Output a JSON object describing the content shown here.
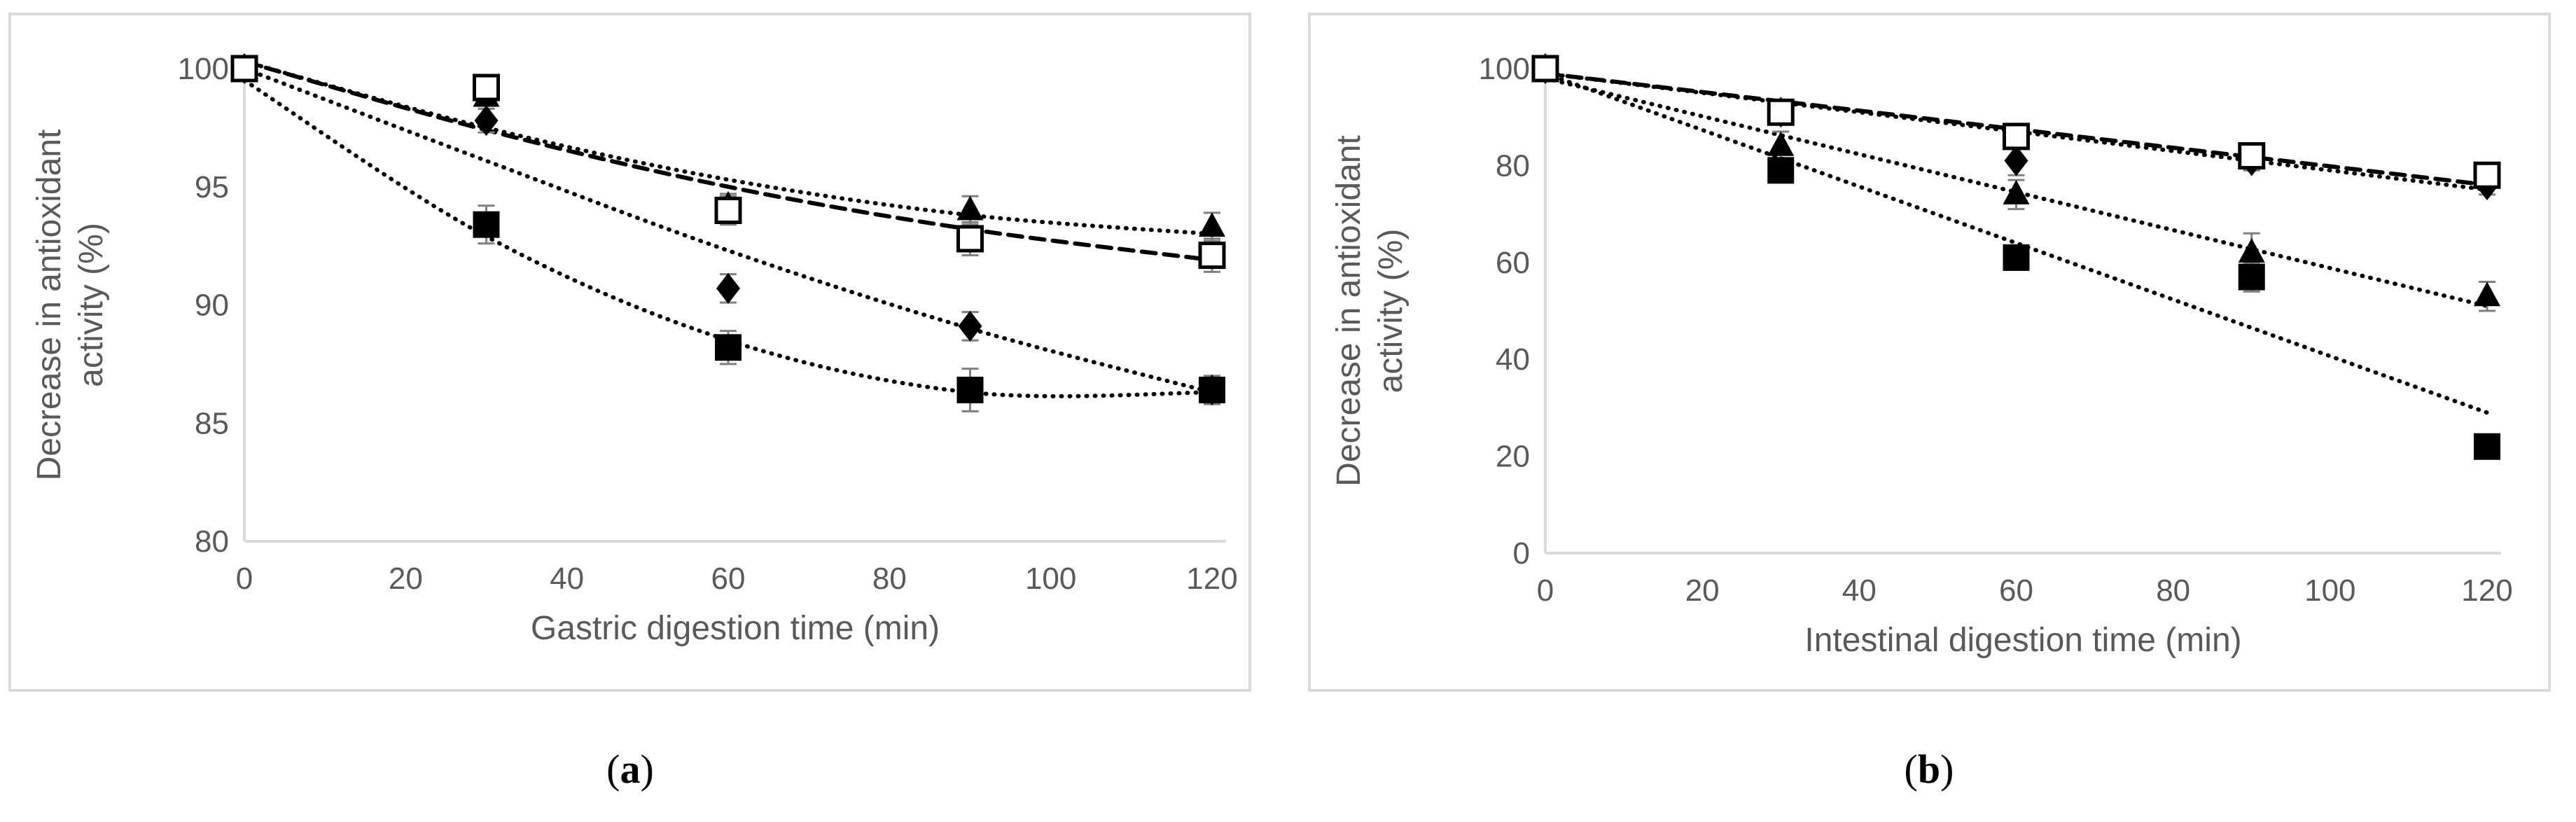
{
  "chart_data": [
    {
      "type": "scatter",
      "panel": "a",
      "xlabel": "Gastric digestion time (min)",
      "ylabel": "Decrease in antioxidant activity (%)",
      "xlim": [
        0,
        120
      ],
      "ylim": [
        80,
        100
      ],
      "xticks": [
        0,
        20,
        40,
        60,
        80,
        100,
        120
      ],
      "yticks": [
        80,
        85,
        90,
        95,
        100
      ],
      "grid": false,
      "series": [
        {
          "marker": "diamond",
          "x": [
            0,
            30,
            60,
            90,
            120
          ],
          "y": [
            100,
            97.8,
            90.7,
            89.1,
            86.4
          ],
          "err": [
            0.3,
            0.5,
            0.6,
            0.6,
            0.5
          ],
          "trend": {
            "style": "dotted",
            "x": [
              0,
              30,
              60,
              90,
              120
            ],
            "y": [
              100,
              96.1,
              92.3,
              89.0,
              86.3
            ]
          }
        },
        {
          "marker": "square-filled",
          "x": [
            0,
            30,
            60,
            90,
            120
          ],
          "y": [
            100,
            93.4,
            88.2,
            86.4,
            86.4
          ],
          "err": [
            0.3,
            0.8,
            0.7,
            0.9,
            0.6
          ],
          "trend": {
            "style": "dotted",
            "x": [
              0,
              30,
              60,
              90,
              120
            ],
            "y": [
              99.5,
              92.9,
              88.5,
              86.3,
              86.3
            ]
          }
        },
        {
          "marker": "triangle",
          "x": [
            0,
            30,
            60,
            90,
            120
          ],
          "y": [
            100,
            98.8,
            94.2,
            94.0,
            93.3
          ],
          "err": [
            0.3,
            0.5,
            0.5,
            0.6,
            0.6
          ],
          "trend": {
            "style": "dotted",
            "x": [
              0,
              30,
              60,
              90,
              120
            ],
            "y": [
              100.3,
              97.5,
              95.3,
              93.8,
              93.0
            ]
          }
        },
        {
          "marker": "square-open",
          "x": [
            0,
            30,
            60,
            90,
            120
          ],
          "y": [
            100,
            99.2,
            94.0,
            92.8,
            92.1
          ],
          "err": [
            0.3,
            0.5,
            0.6,
            0.7,
            0.7
          ],
          "trend": {
            "style": "dashed",
            "x": [
              0,
              30,
              60,
              90,
              120
            ],
            "y": [
              100.3,
              97.4,
              95.0,
              93.2,
              91.9
            ]
          }
        }
      ]
    },
    {
      "type": "scatter",
      "panel": "b",
      "xlabel": "Intestinal digestion time (min)",
      "ylabel": "Decrease in antioxidant activity (%)",
      "xlim": [
        0,
        120
      ],
      "ylim": [
        0,
        100
      ],
      "xticks": [
        0,
        20,
        40,
        60,
        80,
        100,
        120
      ],
      "yticks": [
        0,
        20,
        40,
        60,
        80,
        100
      ],
      "grid": false,
      "series": [
        {
          "marker": "diamond",
          "x": [
            0,
            30,
            60,
            90,
            120
          ],
          "y": [
            100,
            91,
            81,
            81,
            76
          ],
          "err": [
            1.5,
            2,
            3,
            2,
            2
          ],
          "trend": {
            "style": "dotted",
            "x": [
              0,
              120
            ],
            "y": [
              99,
              75
            ]
          }
        },
        {
          "marker": "triangle",
          "x": [
            0,
            30,
            60,
            90,
            120
          ],
          "y": [
            100,
            84,
            74,
            62,
            53
          ],
          "err": [
            1.5,
            3,
            3,
            4,
            3
          ],
          "trend": {
            "style": "dotted",
            "x": [
              0,
              120
            ],
            "y": [
              98,
              51
            ]
          }
        },
        {
          "marker": "square-filled",
          "x": [
            0,
            30,
            60,
            90,
            120
          ],
          "y": [
            100,
            79,
            61,
            57,
            22
          ],
          "err": [
            1.5,
            2,
            2,
            3,
            2
          ],
          "trend": {
            "style": "dotted",
            "x": [
              0,
              120
            ],
            "y": [
              99,
              29
            ]
          }
        },
        {
          "marker": "square-open",
          "x": [
            0,
            30,
            60,
            90,
            120
          ],
          "y": [
            100,
            91,
            86,
            82,
            78
          ],
          "err": [
            1.5,
            2,
            2,
            2,
            2
          ],
          "trend": {
            "style": "dashed",
            "x": [
              0,
              120
            ],
            "y": [
              99,
              76
            ]
          }
        }
      ]
    }
  ],
  "captions": {
    "a": "a",
    "b": "b"
  }
}
